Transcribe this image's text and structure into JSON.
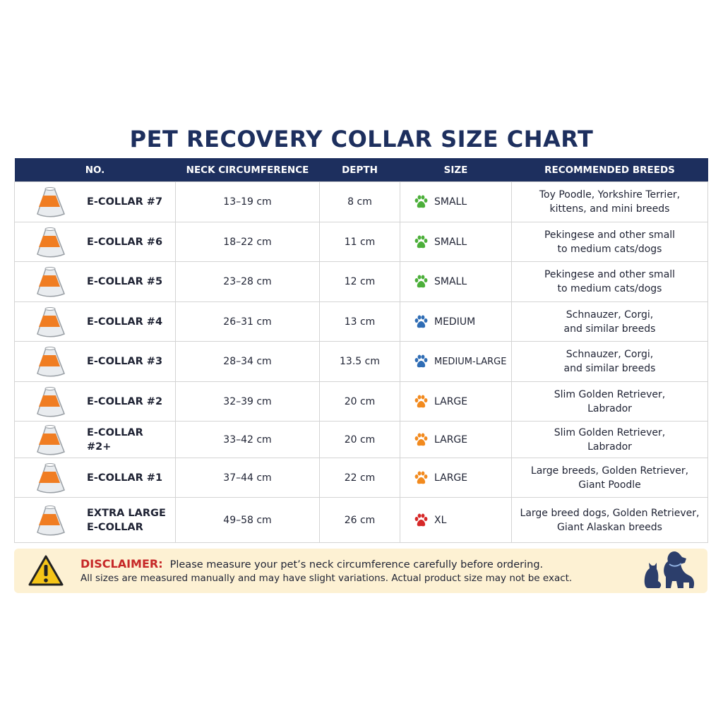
{
  "title": "PET RECOVERY COLLAR SIZE CHART",
  "table": {
    "headers": [
      "NO.",
      "NECK CIRCUMFERENCE",
      "DEPTH",
      "SIZE",
      "RECOMMENDED BREEDS"
    ],
    "rows": [
      {
        "name": "E-COLLAR #7",
        "neck": "13–19 cm",
        "depth": "8 cm",
        "size": "SMALL",
        "paw_color": "#4caf3a",
        "breeds": [
          "Toy Poodle, Yorkshire Terrier,",
          "kittens, and mini breeds"
        ]
      },
      {
        "name": "E-COLLAR #6",
        "neck": "18–22 cm",
        "depth": "11 cm",
        "size": "SMALL",
        "paw_color": "#4caf3a",
        "breeds": [
          "Pekingese and other small",
          "to medium cats/dogs"
        ]
      },
      {
        "name": "E-COLLAR #5",
        "neck": "23–28 cm",
        "depth": "12 cm",
        "size": "SMALL",
        "paw_color": "#4caf3a",
        "breeds": [
          "Pekingese and other small",
          "to medium cats/dogs"
        ]
      },
      {
        "name": "E-COLLAR #4",
        "neck": "26–31 cm",
        "depth": "13 cm",
        "size": "MEDIUM",
        "paw_color": "#2f6db5",
        "breeds": [
          "Schnauzer, Corgi,",
          "and similar breeds"
        ]
      },
      {
        "name": "E-COLLAR #3",
        "neck": "28–34 cm",
        "depth": "13.5 cm",
        "size": "MEDIUM-LARGE",
        "paw_color": "#2f6db5",
        "breeds": [
          "Schnauzer, Corgi,",
          "and similar breeds"
        ]
      },
      {
        "name": "E-COLLAR #2",
        "neck": "32–39 cm",
        "depth": "20 cm",
        "size": "LARGE",
        "paw_color": "#f28a1e",
        "breeds": [
          "Slim Golden Retriever,",
          "Labrador"
        ]
      },
      {
        "name": "E-COLLAR #2+",
        "neck": "33–42 cm",
        "depth": "20 cm",
        "size": "LARGE",
        "paw_color": "#f28a1e",
        "breeds": [
          "Slim Golden Retriever,",
          "Labrador"
        ]
      },
      {
        "name": "E-COLLAR #1",
        "neck": "37–44 cm",
        "depth": "22 cm",
        "size": "LARGE",
        "paw_color": "#f28a1e",
        "breeds": [
          "Large breeds, Golden Retriever,",
          "Giant Poodle"
        ]
      },
      {
        "name": "EXTRA LARGE E-COLLAR",
        "neck": "49–58 cm",
        "depth": "26 cm",
        "size": "XL",
        "paw_color": "#d62828",
        "breeds": [
          "Large breed dogs, Golden Retriever,",
          "Giant Alaskan breeds"
        ]
      }
    ]
  },
  "disclaimer": {
    "label": "DISCLAIMER:",
    "line1": "Please measure your pet’s neck circumference carefully before ordering.",
    "line2": "All sizes are measured manually and may have slight variations. Actual product size may not be exact."
  }
}
